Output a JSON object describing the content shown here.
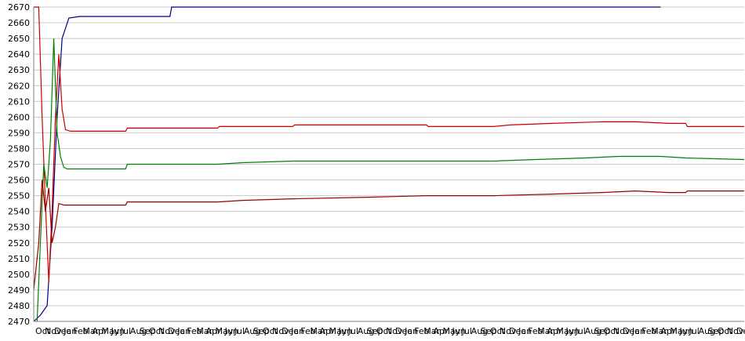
{
  "chart_data": {
    "type": "line",
    "title": "",
    "xlabel": "",
    "ylabel": "",
    "ylim": [
      2470,
      2670
    ],
    "yticks": [
      2470,
      2480,
      2490,
      2500,
      2510,
      2520,
      2530,
      2540,
      2550,
      2560,
      2570,
      2580,
      2590,
      2600,
      2610,
      2620,
      2630,
      2640,
      2650,
      2660,
      2670
    ],
    "grid": "horizontal",
    "legend": "none",
    "x_tick_labels": [
      "Oct",
      "Nov",
      "Dec",
      "Jan",
      "Feb",
      "Mar",
      "Apr",
      "May",
      "Jun",
      "Jul",
      "Aug",
      "Sep",
      "Oct",
      "Nov",
      "Dec",
      "Jan",
      "Feb",
      "Mar",
      "Apr",
      "May",
      "Jun",
      "Jul",
      "Aug",
      "Sep",
      "Oct",
      "Nov",
      "Dec",
      "Jan",
      "Feb",
      "Mar",
      "Apr",
      "May",
      "Jun",
      "Jul",
      "Aug",
      "Sep",
      "Oct",
      "Nov",
      "Dec",
      "Jan",
      "Feb",
      "Mar",
      "Apr",
      "May",
      "Jun",
      "Jul",
      "Aug",
      "Sep",
      "Oct",
      "Nov",
      "Dec",
      "Jan",
      "Feb",
      "Mar",
      "Apr",
      "May",
      "Jun",
      "Jul",
      "Aug",
      "Sep",
      "Oct",
      "Nov",
      "Dec",
      "Jan",
      "Feb",
      "Mar",
      "Apr",
      "May",
      "Jun",
      "Jul",
      "Aug",
      "Sep",
      "Oct",
      "Nov",
      "Dec"
    ],
    "series": [
      {
        "color": "#000080",
        "values": [
          [
            0,
            2470
          ],
          [
            0.8,
            2474
          ],
          [
            1.6,
            2480
          ],
          [
            2.2,
            2530
          ],
          [
            2.8,
            2600
          ],
          [
            3.4,
            2650
          ],
          [
            4.2,
            2663
          ],
          [
            5.5,
            2664
          ],
          [
            9,
            2664
          ],
          [
            14,
            2664
          ],
          [
            16.3,
            2664
          ],
          [
            16.5,
            2670
          ],
          [
            30,
            2670
          ],
          [
            75,
            2670
          ]
        ]
      },
      {
        "color": "#cc0000",
        "values": [
          [
            0,
            2670
          ],
          [
            0.6,
            2670
          ],
          [
            1.0,
            2600
          ],
          [
            1.4,
            2545
          ],
          [
            1.8,
            2495
          ],
          [
            2.2,
            2540
          ],
          [
            2.6,
            2600
          ],
          [
            3.0,
            2640
          ],
          [
            3.4,
            2605
          ],
          [
            3.8,
            2592
          ],
          [
            4.4,
            2591
          ],
          [
            8,
            2591
          ],
          [
            11,
            2591
          ],
          [
            11.2,
            2593
          ],
          [
            22,
            2593
          ],
          [
            22.2,
            2594
          ],
          [
            31,
            2594
          ],
          [
            31.2,
            2595
          ],
          [
            35,
            2595
          ],
          [
            42,
            2595
          ],
          [
            47,
            2595
          ],
          [
            47.2,
            2594
          ],
          [
            55,
            2594
          ],
          [
            57,
            2595
          ],
          [
            62,
            2596
          ],
          [
            68,
            2597
          ],
          [
            72,
            2597
          ],
          [
            76,
            2596
          ],
          [
            78,
            2596
          ],
          [
            78.2,
            2594
          ],
          [
            85,
            2594
          ]
        ]
      },
      {
        "color": "#008000",
        "values": [
          [
            0.4,
            2470
          ],
          [
            0.8,
            2520
          ],
          [
            1.2,
            2570
          ],
          [
            1.6,
            2555
          ],
          [
            2.0,
            2585
          ],
          [
            2.4,
            2650
          ],
          [
            2.8,
            2590
          ],
          [
            3.2,
            2575
          ],
          [
            3.6,
            2568
          ],
          [
            4.0,
            2567
          ],
          [
            8,
            2567
          ],
          [
            11,
            2567
          ],
          [
            11.2,
            2570
          ],
          [
            22,
            2570
          ],
          [
            25,
            2571
          ],
          [
            31,
            2572
          ],
          [
            40,
            2572
          ],
          [
            47,
            2572
          ],
          [
            55,
            2572
          ],
          [
            60,
            2573
          ],
          [
            66,
            2574
          ],
          [
            70,
            2575
          ],
          [
            75,
            2575
          ],
          [
            78,
            2574
          ],
          [
            85,
            2573
          ]
        ]
      },
      {
        "color": "#990000",
        "values": [
          [
            0,
            2490
          ],
          [
            0.6,
            2520
          ],
          [
            1.0,
            2560
          ],
          [
            1.4,
            2540
          ],
          [
            1.8,
            2555
          ],
          [
            2.2,
            2520
          ],
          [
            2.6,
            2530
          ],
          [
            3.0,
            2545
          ],
          [
            3.6,
            2544
          ],
          [
            8,
            2544
          ],
          [
            11,
            2544
          ],
          [
            11.2,
            2546
          ],
          [
            22,
            2546
          ],
          [
            25,
            2547
          ],
          [
            31,
            2548
          ],
          [
            40,
            2549
          ],
          [
            47,
            2550
          ],
          [
            55,
            2550
          ],
          [
            62,
            2551
          ],
          [
            68,
            2552
          ],
          [
            72,
            2553
          ],
          [
            76,
            2552
          ],
          [
            78,
            2552
          ],
          [
            78.2,
            2553
          ],
          [
            85,
            2553
          ]
        ]
      }
    ]
  }
}
